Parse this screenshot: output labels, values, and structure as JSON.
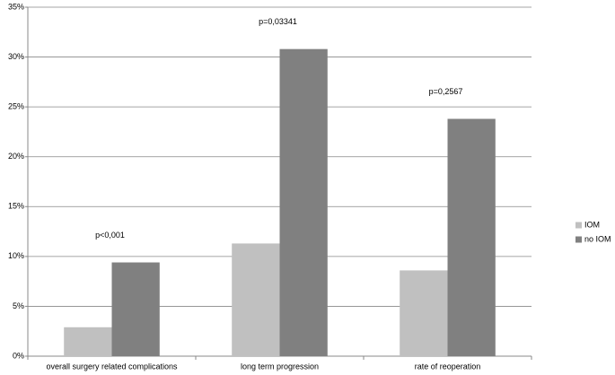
{
  "chart_data": {
    "type": "bar",
    "categories": [
      "overall surgery related complications",
      "long term progression",
      "rate of reoperation"
    ],
    "series": [
      {
        "name": "IOM",
        "color": "#c0c0c0",
        "values": [
          2.9,
          11.3,
          8.6
        ]
      },
      {
        "name": "no IOM",
        "color": "#808080",
        "values": [
          9.4,
          30.8,
          23.8
        ]
      }
    ],
    "annotations": [
      "p<0,001",
      "p=0,03341",
      "p=0,2567"
    ],
    "ylim": [
      0,
      35
    ],
    "yticks": [
      {
        "value": 0,
        "label": "0%"
      },
      {
        "value": 5,
        "label": "5%"
      },
      {
        "value": 10,
        "label": "10%"
      },
      {
        "value": 15,
        "label": "15%"
      },
      {
        "value": 20,
        "label": "20%"
      },
      {
        "value": 25,
        "label": "25%"
      },
      {
        "value": 30,
        "label": "30%"
      },
      {
        "value": 35,
        "label": "35%"
      }
    ],
    "grid": true,
    "legend": "right"
  }
}
